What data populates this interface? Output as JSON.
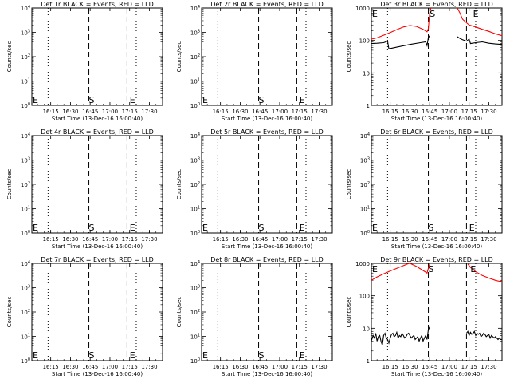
{
  "time_ticks": [
    "16:15",
    "16:30",
    "16:45",
    "17:00",
    "17:15",
    "17:30"
  ],
  "xlabel": "Start Time (13-Dec-16 16:00:40)",
  "ylabel": "Counts/sec",
  "marker_s": "S",
  "marker_e": "E",
  "colors": {
    "events": "#000000",
    "lld": "#ff0000"
  },
  "chart_data": [
    {
      "type": "line",
      "title": "Det 1r BLACK = Events, RED = LLD",
      "x_range": [
        "16:00:40",
        "17:40"
      ],
      "ylim": [
        1,
        10000
      ],
      "y_tick_labels": [
        "10^0",
        "10^1",
        "10^2",
        "10^3",
        "10^4"
      ],
      "dotted_times": [
        "16:13",
        "17:20"
      ],
      "dashed_times": [
        "16:44",
        "17:13"
      ],
      "s_time": "16:44",
      "e_time": "17:15",
      "series": []
    },
    {
      "type": "line",
      "title": "Det 2r BLACK = Events, RED = LLD",
      "x_range": [
        "16:00:40",
        "17:40"
      ],
      "ylim": [
        1,
        10000
      ],
      "y_tick_labels": [
        "10^0",
        "10^1",
        "10^2",
        "10^3",
        "10^4"
      ],
      "dotted_times": [
        "16:13",
        "17:20"
      ],
      "dashed_times": [
        "16:44",
        "17:13"
      ],
      "s_time": "16:44",
      "e_time": "17:15",
      "series": []
    },
    {
      "type": "line",
      "title": "Det 3r BLACK = Events, RED = LLD",
      "x_range": [
        "16:00:40",
        "17:40"
      ],
      "ylim": [
        1,
        1000
      ],
      "y_tick_labels": [
        "1",
        "10",
        "100",
        "1000"
      ],
      "dotted_times": [
        "16:13",
        "17:20"
      ],
      "dashed_times": [
        "16:44",
        "17:13"
      ],
      "s_time": "16:45",
      "e_time": "17:18",
      "series": [
        {
          "color": "lld",
          "segments": [
            {
              "x": [
                "16:00:40",
                "16:05",
                "16:10",
                "16:15",
                "16:20",
                "16:25",
                "16:30",
                "16:35",
                "16:40",
                "16:43",
                "16:44",
                "16:45",
                "16:46"
              ],
              "y": [
                110,
                120,
                145,
                175,
                215,
                260,
                290,
                270,
                220,
                185,
                230,
                700,
                1200
              ]
            },
            {
              "x": [
                "17:06",
                "17:08",
                "17:10",
                "17:13",
                "17:15",
                "17:20",
                "17:25",
                "17:30",
                "17:35",
                "17:40"
              ],
              "y": [
                1200,
                700,
                450,
                350,
                300,
                260,
                220,
                190,
                160,
                140
              ]
            }
          ]
        },
        {
          "color": "events",
          "segments": [
            {
              "x": [
                "16:00:40",
                "16:05",
                "16:10",
                "16:13",
                "16:14",
                "16:20",
                "16:30",
                "16:38",
                "16:42",
                "16:43",
                "16:44",
                "16:45"
              ],
              "y": [
                80,
                82,
                85,
                95,
                55,
                62,
                75,
                85,
                90,
                70,
                120,
                140
              ]
            },
            {
              "x": [
                "17:06",
                "17:08",
                "17:10",
                "17:13",
                "17:15",
                "17:16",
                "17:20",
                "17:25",
                "17:30",
                "17:35",
                "17:40"
              ],
              "y": [
                130,
                115,
                105,
                95,
                110,
                80,
                85,
                90,
                82,
                78,
                75
              ]
            }
          ]
        }
      ]
    },
    {
      "type": "line",
      "title": "Det 4r BLACK = Events, RED = LLD",
      "x_range": [
        "16:00:40",
        "17:40"
      ],
      "ylim": [
        1,
        10000
      ],
      "y_tick_labels": [
        "10^0",
        "10^1",
        "10^2",
        "10^3",
        "10^4"
      ],
      "dotted_times": [
        "16:13",
        "17:20"
      ],
      "dashed_times": [
        "16:44",
        "17:13"
      ],
      "s_time": "16:44",
      "e_time": "17:15",
      "series": []
    },
    {
      "type": "line",
      "title": "Det 5r BLACK = Events, RED = LLD",
      "x_range": [
        "16:00:40",
        "17:40"
      ],
      "ylim": [
        1,
        10000
      ],
      "y_tick_labels": [
        "10^0",
        "10^1",
        "10^2",
        "10^3",
        "10^4"
      ],
      "dotted_times": [
        "16:13",
        "17:20"
      ],
      "dashed_times": [
        "16:44",
        "17:13"
      ],
      "s_time": "16:44",
      "e_time": "17:15",
      "series": []
    },
    {
      "type": "line",
      "title": "Det 6r BLACK = Events, RED = LLD",
      "x_range": [
        "16:00:40",
        "17:40"
      ],
      "ylim": [
        1,
        10000
      ],
      "y_tick_labels": [
        "10^0",
        "10^1",
        "10^2",
        "10^3",
        "10^4"
      ],
      "dotted_times": [
        "16:13",
        "17:20"
      ],
      "dashed_times": [
        "16:44",
        "17:13"
      ],
      "s_time": "16:44",
      "e_time": "17:15",
      "series": []
    },
    {
      "type": "line",
      "title": "Det 7r BLACK = Events, RED = LLD",
      "x_range": [
        "16:00:40",
        "17:40"
      ],
      "ylim": [
        1,
        10000
      ],
      "y_tick_labels": [
        "10^0",
        "10^1",
        "10^2",
        "10^3",
        "10^4"
      ],
      "dotted_times": [
        "16:13",
        "17:20"
      ],
      "dashed_times": [
        "16:44",
        "17:13"
      ],
      "s_time": "16:44",
      "e_time": "17:15",
      "series": []
    },
    {
      "type": "line",
      "title": "Det 8r BLACK = Events, RED = LLD",
      "x_range": [
        "16:00:40",
        "17:40"
      ],
      "ylim": [
        1,
        10000
      ],
      "y_tick_labels": [
        "10^0",
        "10^1",
        "10^2",
        "10^3",
        "10^4"
      ],
      "dotted_times": [
        "16:13",
        "17:20"
      ],
      "dashed_times": [
        "16:44",
        "17:13"
      ],
      "s_time": "16:44",
      "e_time": "17:15",
      "series": []
    },
    {
      "type": "line",
      "title": "Det 9r BLACK = Events, RED = LLD",
      "x_range": [
        "16:00:40",
        "17:40"
      ],
      "ylim": [
        1,
        1000
      ],
      "y_tick_labels": [
        "1",
        "10",
        "100",
        "1000"
      ],
      "dotted_times": [
        "16:13",
        "17:20"
      ],
      "dashed_times": [
        "16:44",
        "17:13"
      ],
      "s_time": "16:44",
      "e_time": "17:16",
      "series": [
        {
          "color": "lld",
          "segments": [
            {
              "x": [
                "16:00:40",
                "16:05",
                "16:10",
                "16:15",
                "16:20",
                "16:25",
                "16:28",
                "16:30",
                "16:35",
                "16:40",
                "16:43",
                "16:44",
                "16:45"
              ],
              "y": [
                300,
                380,
                470,
                580,
                700,
                850,
                950,
                1000,
                800,
                600,
                500,
                700,
                950
              ]
            },
            {
              "x": [
                "17:14",
                "17:16",
                "17:20",
                "17:25",
                "17:30",
                "17:35",
                "17:38",
                "17:40"
              ],
              "y": [
                950,
                750,
                550,
                420,
                350,
                300,
                280,
                280
              ]
            }
          ]
        },
        {
          "color": "events",
          "segments": [
            {
              "x": [
                "16:00:40",
                "16:01",
                "16:02",
                "16:03",
                "16:04",
                "16:05",
                "16:06",
                "16:07",
                "16:08",
                "16:09",
                "16:10",
                "16:11",
                "16:12",
                "16:13",
                "16:14",
                "16:15",
                "16:16",
                "16:17",
                "16:18",
                "16:19",
                "16:20",
                "16:21",
                "16:22",
                "16:23",
                "16:24",
                "16:25",
                "16:26",
                "16:27",
                "16:28",
                "16:29",
                "16:30",
                "16:31",
                "16:32",
                "16:33",
                "16:34",
                "16:35",
                "16:36",
                "16:37",
                "16:38",
                "16:39",
                "16:40",
                "16:41",
                "16:42",
                "16:43",
                "16:44",
                "16:45"
              ],
              "y": [
                5,
                4.5,
                6,
                5,
                7,
                4,
                5.5,
                6,
                4,
                3,
                6,
                7,
                5,
                4.5,
                3.5,
                5,
                6.5,
                7,
                5.5,
                6,
                7.5,
                5,
                6,
                5.5,
                7,
                6,
                5,
                5.5,
                6.5,
                7,
                6,
                5,
                5.5,
                6,
                4.5,
                5,
                5.5,
                4,
                5,
                6,
                4,
                5,
                6,
                4.5,
                9,
                11
              ]
            },
            {
              "x": [
                "17:13",
                "17:14",
                "17:15",
                "17:16",
                "17:17",
                "17:18",
                "17:19",
                "17:20",
                "17:21",
                "17:22",
                "17:23",
                "17:24",
                "17:25",
                "17:26",
                "17:27",
                "17:28",
                "17:29",
                "17:30",
                "17:31",
                "17:32",
                "17:33",
                "17:34",
                "17:35",
                "17:36",
                "17:37",
                "17:38",
                "17:39",
                "17:40"
              ],
              "y": [
                7,
                8,
                6,
                7.5,
                6.5,
                7,
                8,
                6,
                7,
                6.5,
                7,
                5.5,
                6,
                7,
                6.5,
                5.5,
                6,
                6.5,
                5,
                6,
                5.5,
                5,
                5.5,
                5,
                4.5,
                5,
                4.5,
                4.5
              ]
            }
          ]
        }
      ]
    }
  ]
}
